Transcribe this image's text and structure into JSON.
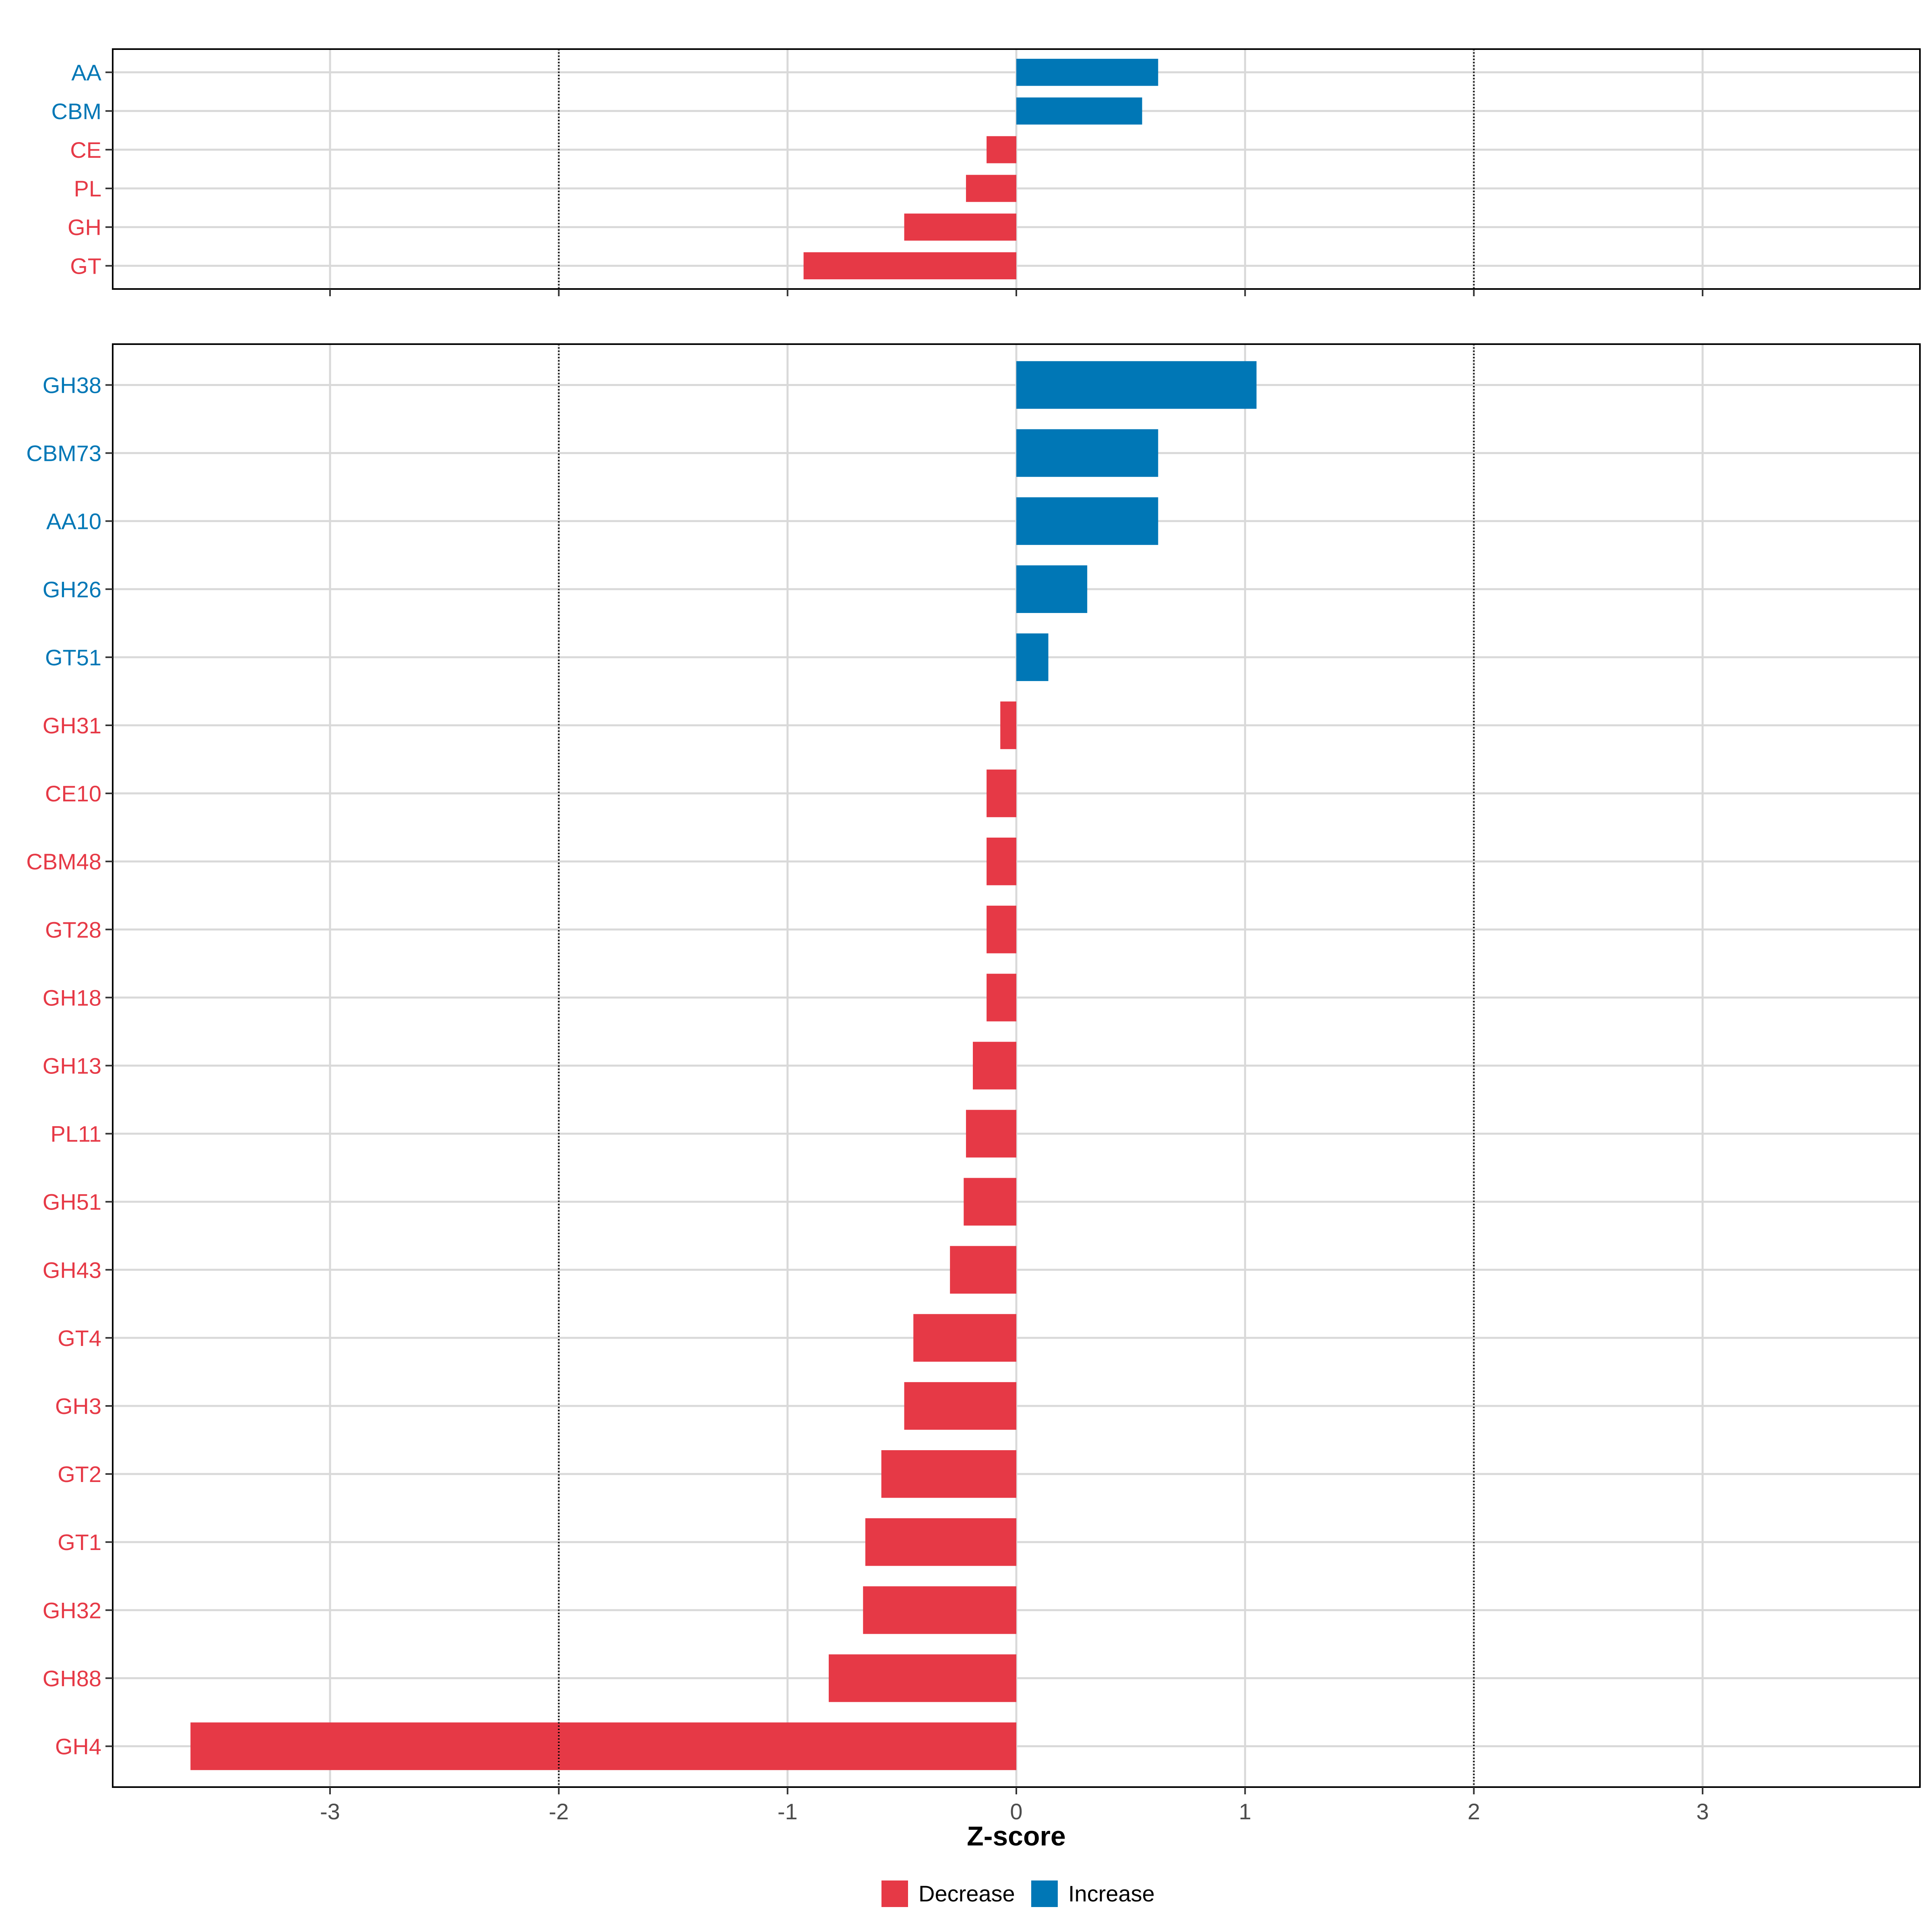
{
  "colors": {
    "decrease": "#e63946",
    "increase": "#0077b6",
    "grid": "#d9d9d9",
    "border": "#000000",
    "axis_text": "#4d4d4d"
  },
  "chart_data": {
    "type": "bar",
    "orientation": "horizontal",
    "xlabel": "Z-score",
    "xlim": [
      -3.95,
      3.95
    ],
    "x_ticks": [
      -3,
      -2,
      -1,
      0,
      1,
      2,
      3
    ],
    "x_tick_labels": [
      "-3",
      "-2",
      "-1",
      "0",
      "1",
      "2",
      "3"
    ],
    "reference_lines": [
      -2,
      2
    ],
    "legend": {
      "position": "bottom",
      "entries": [
        {
          "label": "Decrease",
          "key": "decrease"
        },
        {
          "label": "Increase",
          "key": "increase"
        }
      ]
    },
    "panels": [
      {
        "name": "class",
        "categories": [
          "AA",
          "CBM",
          "CE",
          "PL",
          "GH",
          "GT"
        ],
        "values": [
          0.62,
          0.55,
          -0.13,
          -0.22,
          -0.49,
          -0.93
        ],
        "direction": [
          "increase",
          "increase",
          "decrease",
          "decrease",
          "decrease",
          "decrease"
        ]
      },
      {
        "name": "family",
        "categories": [
          "GH38",
          "CBM73",
          "AA10",
          "GH26",
          "GT51",
          "GH31",
          "CE10",
          "CBM48",
          "GT28",
          "GH18",
          "GH13",
          "PL11",
          "GH51",
          "GH43",
          "GT4",
          "GH3",
          "GT2",
          "GT1",
          "GH32",
          "GH88",
          "GH4"
        ],
        "values": [
          1.05,
          0.62,
          0.62,
          0.31,
          0.14,
          -0.07,
          -0.13,
          -0.13,
          -0.13,
          -0.13,
          -0.19,
          -0.22,
          -0.23,
          -0.29,
          -0.45,
          -0.49,
          -0.59,
          -0.66,
          -0.67,
          -0.82,
          -3.61
        ],
        "direction": [
          "increase",
          "increase",
          "increase",
          "increase",
          "increase",
          "decrease",
          "decrease",
          "decrease",
          "decrease",
          "decrease",
          "decrease",
          "decrease",
          "decrease",
          "decrease",
          "decrease",
          "decrease",
          "decrease",
          "decrease",
          "decrease",
          "decrease",
          "decrease"
        ]
      }
    ]
  }
}
